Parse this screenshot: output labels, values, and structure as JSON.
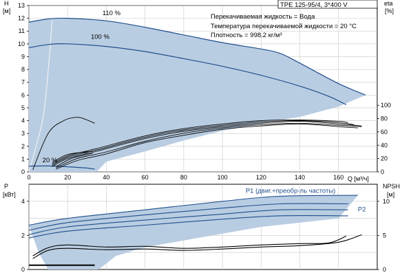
{
  "product_title": "TPE 125-95/4, 3*400 V",
  "info_lines": [
    "Перекачиваемая жидкость = Вода",
    "Температура перекачиваемой жидкости = 20 °C",
    "Плотность = 998.2 кг/м³"
  ],
  "colors": {
    "band_fill": "#b9cde2",
    "curve": "#1f4e8c",
    "grid": "#c8c8c8",
    "black": "#000000"
  },
  "chart_data": [
    {
      "id": "head-efficiency",
      "type": "line",
      "xlabel": "Q [м³/ч]",
      "ylabel_left": {
        "symbol": "H",
        "unit": "[м]"
      },
      "ylabel_right": {
        "symbol": "eta",
        "unit": "[%]"
      },
      "xlim": [
        0,
        180
      ],
      "ylim_left": [
        0,
        13
      ],
      "ylim_right": [
        0,
        250
      ],
      "x_ticks": [
        0,
        20,
        40,
        60,
        80,
        100,
        120,
        140,
        160
      ],
      "y_ticks_left": [
        0,
        1,
        2,
        3,
        4,
        5,
        6,
        7,
        8,
        9,
        10,
        11,
        12,
        13
      ],
      "y_ticks_right": [
        0,
        20,
        40,
        60,
        80,
        100
      ],
      "grid": true,
      "operating_band": {
        "upper": [
          [
            0,
            11.7
          ],
          [
            10,
            11.95
          ],
          [
            20,
            12.0
          ],
          [
            40,
            11.8
          ],
          [
            60,
            11.3
          ],
          [
            80,
            10.7
          ],
          [
            100,
            10.1
          ],
          [
            120,
            9.6
          ],
          [
            130,
            9.25
          ],
          [
            140,
            8.5
          ],
          [
            160,
            6.9
          ],
          [
            174,
            6.0
          ]
        ],
        "lower": [
          [
            174,
            6.0
          ],
          [
            160,
            5.1
          ],
          [
            140,
            4.3
          ],
          [
            120,
            3.8
          ],
          [
            100,
            3.2
          ],
          [
            80,
            2.45
          ],
          [
            60,
            1.6
          ],
          [
            40,
            0.8
          ],
          [
            35,
            0.0
          ],
          [
            0,
            0.0
          ],
          [
            0,
            11.7
          ]
        ],
        "envelope_left": [
          [
            0,
            0.0
          ],
          [
            7,
            4.0
          ],
          [
            10,
            8.0
          ],
          [
            12,
            11.9
          ]
        ]
      },
      "series": [
        {
          "name": "110 %",
          "kind": "head",
          "label": "110 %",
          "label_at": [
            38,
            12.25
          ],
          "points": [
            [
              0,
              11.7
            ],
            [
              10,
              11.95
            ],
            [
              20,
              12.0
            ],
            [
              40,
              11.8
            ],
            [
              60,
              11.3
            ],
            [
              80,
              10.7
            ],
            [
              100,
              10.1
            ],
            [
              120,
              9.6
            ],
            [
              130,
              9.25
            ],
            [
              140,
              8.5
            ],
            [
              160,
              6.9
            ],
            [
              174,
              6.0
            ]
          ]
        },
        {
          "name": "100 %",
          "kind": "head",
          "label": "100 %",
          "label_at": [
            32,
            10.4
          ],
          "points": [
            [
              0,
              9.7
            ],
            [
              10,
              9.95
            ],
            [
              20,
              10.0
            ],
            [
              40,
              9.8
            ],
            [
              60,
              9.4
            ],
            [
              80,
              8.85
            ],
            [
              100,
              8.25
            ],
            [
              120,
              7.55
            ],
            [
              140,
              6.7
            ],
            [
              155,
              5.9
            ],
            [
              164,
              5.25
            ]
          ]
        },
        {
          "name": "20 %",
          "kind": "head",
          "label": "20 %",
          "label_at": [
            7,
            0.75
          ],
          "points": [
            [
              0,
              0.45
            ],
            [
              10,
              0.46
            ],
            [
              20,
              0.4
            ],
            [
              30,
              0.3
            ],
            [
              34,
              0.22
            ]
          ]
        },
        {
          "kind": "efficiency",
          "points": [
            [
              2,
              3
            ],
            [
              10,
              58
            ],
            [
              18,
              77
            ],
            [
              25,
              82
            ],
            [
              30,
              78
            ],
            [
              34,
              73
            ]
          ]
        },
        {
          "kind": "efficiency",
          "points": [
            [
              12,
              12
            ],
            [
              20,
              24
            ],
            [
              35,
              35
            ],
            [
              60,
              54
            ],
            [
              80,
              65
            ],
            [
              100,
              72
            ],
            [
              120,
              77
            ],
            [
              140,
              78
            ],
            [
              160,
              76
            ],
            [
              165,
              74
            ]
          ]
        },
        {
          "kind": "efficiency",
          "points": [
            [
              12,
              10
            ],
            [
              20,
              22
            ],
            [
              35,
              33
            ],
            [
              60,
              52
            ],
            [
              80,
              63
            ],
            [
              100,
              70
            ],
            [
              120,
              75
            ],
            [
              140,
              77
            ],
            [
              160,
              74
            ],
            [
              168,
              71
            ]
          ]
        },
        {
          "kind": "efficiency",
          "points": [
            [
              12,
              8
            ],
            [
              20,
              20
            ],
            [
              35,
              31
            ],
            [
              60,
              50
            ],
            [
              80,
              61
            ],
            [
              100,
              68
            ],
            [
              120,
              73
            ],
            [
              140,
              76
            ],
            [
              160,
              72
            ],
            [
              172,
              69
            ]
          ]
        },
        {
          "kind": "efficiency",
          "points": [
            [
              14,
              6
            ],
            [
              25,
              20
            ],
            [
              40,
              30
            ],
            [
              60,
              46
            ],
            [
              80,
              58
            ],
            [
              100,
              66
            ],
            [
              120,
              71
            ],
            [
              140,
              73
            ],
            [
              160,
              70
            ],
            [
              172,
              68
            ]
          ]
        },
        {
          "kind": "efficiency",
          "points": [
            [
              14,
              4
            ],
            [
              25,
              17
            ],
            [
              40,
              27
            ],
            [
              60,
              44
            ],
            [
              80,
              55
            ],
            [
              100,
              64
            ],
            [
              120,
              69
            ],
            [
              140,
              72
            ],
            [
              160,
              68
            ],
            [
              170,
              66
            ]
          ]
        },
        {
          "kind": "efficiency",
          "points": [
            [
              12,
              14
            ],
            [
              20,
              26
            ],
            [
              33,
              31
            ]
          ]
        },
        {
          "kind": "efficiency",
          "points": [
            [
              14,
              8
            ],
            [
              22,
              20
            ],
            [
              33,
              28
            ]
          ]
        }
      ]
    },
    {
      "id": "power-npsh",
      "type": "line",
      "ylabel_left": {
        "symbol": "P",
        "unit": "[кВт]"
      },
      "ylabel_right": {
        "symbol": "NPSH",
        "unit": "[м]"
      },
      "xlim": [
        0,
        180
      ],
      "ylim_left": [
        0,
        5
      ],
      "ylim_right": [
        0,
        12.5
      ],
      "y_ticks_left": [
        0,
        2,
        4
      ],
      "y_ticks_right": [
        0,
        5,
        10
      ],
      "grid": true,
      "operating_band": {
        "upper": [
          [
            0,
            2.6
          ],
          [
            20,
            3.0
          ],
          [
            60,
            3.5
          ],
          [
            100,
            4.0
          ],
          [
            130,
            4.3
          ],
          [
            170,
            4.35
          ]
        ],
        "lower": [
          [
            170,
            4.35
          ],
          [
            160,
            3.0
          ],
          [
            120,
            2.5
          ],
          [
            80,
            1.7
          ],
          [
            60,
            1.3
          ],
          [
            45,
            0.8
          ],
          [
            36,
            0.0
          ],
          [
            10,
            0.0
          ],
          [
            5,
            1.0
          ],
          [
            0,
            2.6
          ]
        ]
      },
      "series": [
        {
          "name": "P1 (двиг.+преобр-ль частоты)",
          "kind": "power",
          "label": "P1 (двиг.+преобр-ль частоты)",
          "label_at": [
            112,
            4.5
          ],
          "points": [
            [
              0,
              2.6
            ],
            [
              20,
              3.0
            ],
            [
              60,
              3.5
            ],
            [
              100,
              4.0
            ],
            [
              130,
              4.3
            ],
            [
              170,
              4.35
            ]
          ]
        },
        {
          "kind": "power",
          "points": [
            [
              0,
              2.3
            ],
            [
              20,
              2.75
            ],
            [
              60,
              3.2
            ],
            [
              100,
              3.6
            ],
            [
              130,
              3.85
            ],
            [
              165,
              3.85
            ]
          ]
        },
        {
          "name": "P2",
          "kind": "power",
          "label": "P2",
          "label_at": [
            170,
            3.4
          ],
          "points": [
            [
              0,
              2.05
            ],
            [
              20,
              2.5
            ],
            [
              60,
              2.9
            ],
            [
              100,
              3.25
            ],
            [
              130,
              3.5
            ],
            [
              165,
              3.5
            ]
          ]
        },
        {
          "kind": "power",
          "points": [
            [
              0,
              1.85
            ],
            [
              20,
              2.25
            ],
            [
              60,
              2.6
            ],
            [
              100,
              2.95
            ],
            [
              130,
              3.15
            ],
            [
              165,
              3.15
            ]
          ]
        },
        {
          "kind": "npsh",
          "points": [
            [
              2,
              2.0
            ],
            [
              10,
              3.2
            ],
            [
              20,
              3.6
            ],
            [
              40,
              3.3
            ],
            [
              60,
              3.4
            ],
            [
              80,
              3.1
            ],
            [
              100,
              3.3
            ],
            [
              120,
              3.6
            ],
            [
              140,
              3.8
            ],
            [
              155,
              3.9
            ],
            [
              164,
              4.9
            ]
          ]
        },
        {
          "kind": "npsh",
          "points": [
            [
              2,
              1.6
            ],
            [
              10,
              2.8
            ],
            [
              20,
              3.1
            ],
            [
              40,
              2.9
            ],
            [
              60,
              3.0
            ],
            [
              80,
              2.8
            ],
            [
              100,
              3.0
            ],
            [
              120,
              3.3
            ],
            [
              140,
              3.5
            ],
            [
              160,
              4.0
            ],
            [
              172,
              5.1
            ]
          ]
        },
        {
          "kind": "npsh_short",
          "points": [
            [
              0,
              0.25
            ],
            [
              34,
              0.25
            ]
          ]
        }
      ]
    }
  ]
}
